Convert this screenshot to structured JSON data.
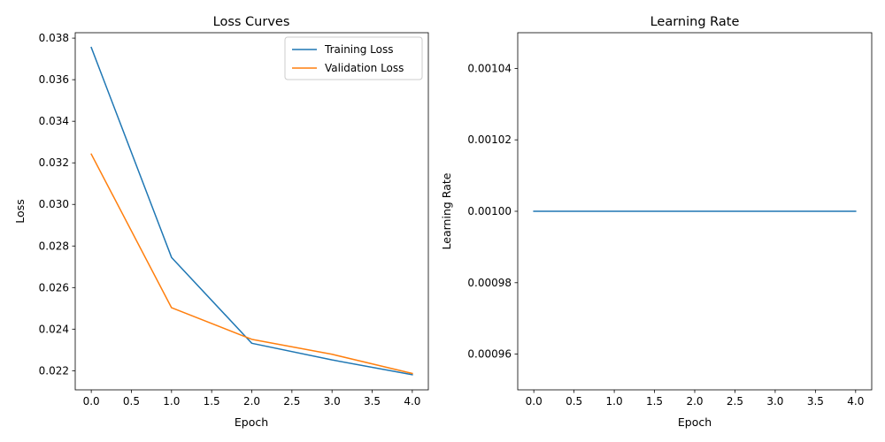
{
  "chart_data": [
    {
      "type": "line",
      "title": "Loss Curves",
      "xlabel": "Epoch",
      "ylabel": "Loss",
      "x": [
        0,
        1,
        2,
        3,
        4
      ],
      "xlim": [
        -0.2,
        4.2
      ],
      "ylim": [
        0.02108,
        0.03826
      ],
      "xticks": [
        "0.0",
        "0.5",
        "1.0",
        "1.5",
        "2.0",
        "2.5",
        "3.0",
        "3.5",
        "4.0"
      ],
      "yticks": [
        "0.022",
        "0.024",
        "0.026",
        "0.028",
        "0.030",
        "0.032",
        "0.034",
        "0.036",
        "0.038"
      ],
      "grid": false,
      "legend_position": "top-right",
      "series": [
        {
          "name": "Training Loss",
          "color": "#1f77b4",
          "values": [
            0.03755,
            0.02745,
            0.02332,
            0.02252,
            0.02181
          ]
        },
        {
          "name": "Validation Loss",
          "color": "#ff7f0e",
          "values": [
            0.03242,
            0.02503,
            0.02351,
            0.02279,
            0.02187
          ]
        }
      ]
    },
    {
      "type": "line",
      "title": "Learning Rate",
      "xlabel": "Epoch",
      "ylabel": "Learning Rate",
      "x": [
        0,
        1,
        2,
        3,
        4
      ],
      "xlim": [
        -0.2,
        4.2
      ],
      "ylim": [
        0.00095,
        0.00105
      ],
      "xticks": [
        "0.0",
        "0.5",
        "1.0",
        "1.5",
        "2.0",
        "2.5",
        "3.0",
        "3.5",
        "4.0"
      ],
      "yticks": [
        "0.00096",
        "0.00098",
        "0.00100",
        "0.00102",
        "0.00104"
      ],
      "grid": false,
      "series": [
        {
          "color": "#1f77b4",
          "values": [
            0.001,
            0.001,
            0.001,
            0.001,
            0.001
          ]
        }
      ]
    }
  ]
}
